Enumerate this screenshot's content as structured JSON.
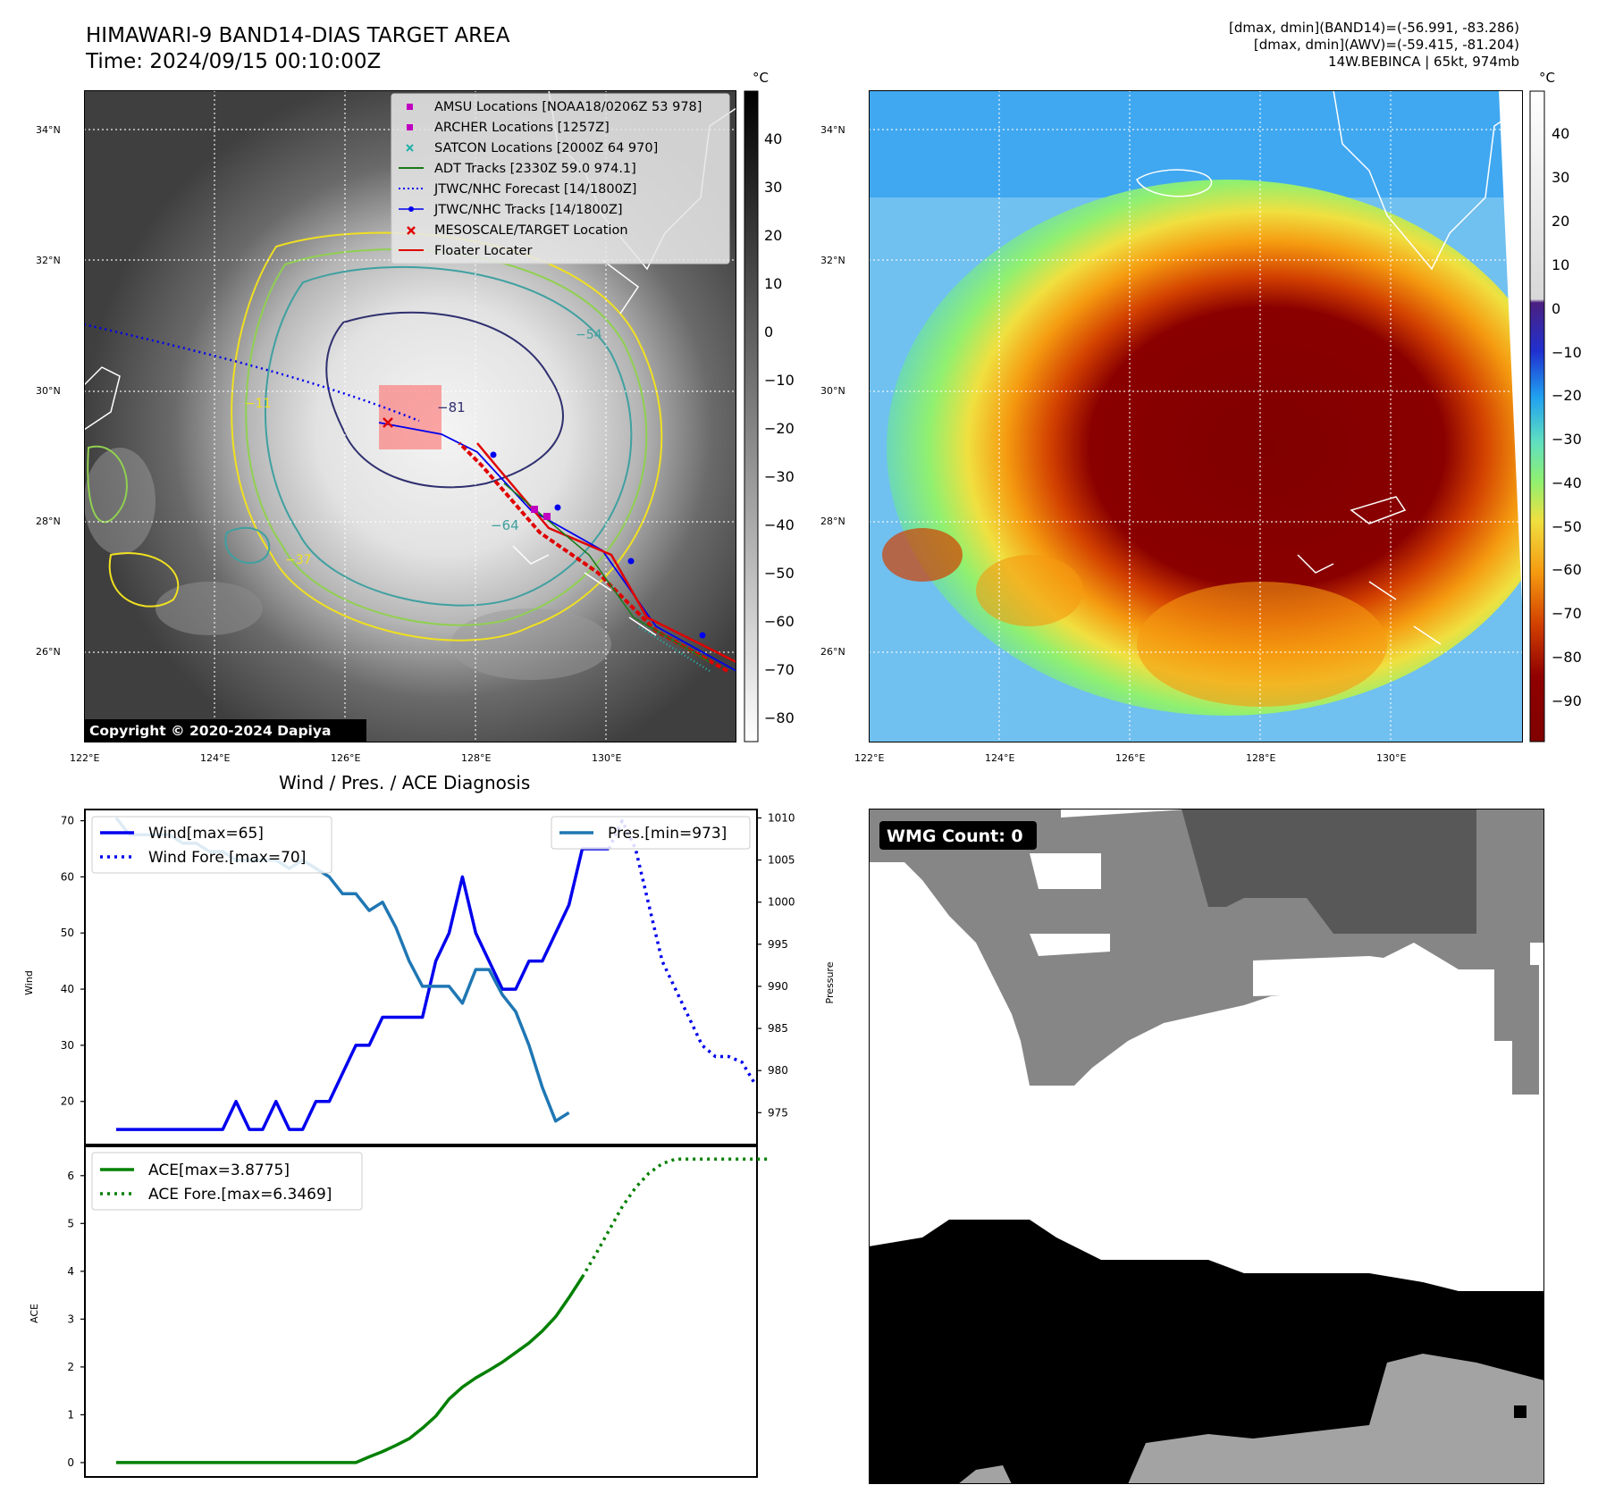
{
  "header": {
    "title_line1": "HIMAWARI-9 BAND14-DIAS TARGET AREA",
    "title_line2": "Time: 2024/09/15 00:10:00Z",
    "info_line1": "[dmax, dmin](BAND14)=(-56.991, -83.286)",
    "info_line2": "[dmax, dmin](AWV)=(-59.415, -81.204)",
    "info_line3": "14W.BEBINCA | 65kt, 974mb"
  },
  "maps": {
    "lat_ticks": [
      "34°N",
      "32°N",
      "30°N",
      "28°N",
      "26°N"
    ],
    "lon_ticks": [
      "122°E",
      "124°E",
      "126°E",
      "128°E",
      "130°E"
    ],
    "copyright": "Copyright © 2020-2024 Dapiya",
    "unit": "°C",
    "gray_cbar_ticks": [
      "40",
      "30",
      "20",
      "10",
      "0",
      "−10",
      "−20",
      "−30",
      "−40",
      "−50",
      "−60",
      "−70",
      "−80"
    ],
    "color_cbar_ticks": [
      "40",
      "30",
      "20",
      "10",
      "0",
      "−10",
      "−20",
      "−30",
      "−40",
      "−50",
      "−60",
      "−70",
      "−80",
      "−90"
    ],
    "contour_labels": [
      "−81",
      "−64",
      "−54",
      "−37",
      "−11"
    ],
    "legend": [
      {
        "label": "AMSU Locations [NOAA18/0206Z 53 978]",
        "color": "#c000c0",
        "marker": "square"
      },
      {
        "label": "ARCHER Locations [1257Z]",
        "color": "#c000c0",
        "marker": "square"
      },
      {
        "label": "SATCON Locations [2000Z 64 970]",
        "color": "#20b2aa",
        "marker": "x"
      },
      {
        "label": "ADT Tracks [2330Z 59.0 974.1]",
        "color": "#1a7a1a",
        "marker": "line"
      },
      {
        "label": "JTWC/NHC Forecast [14/1800Z]",
        "color": "#0000ee",
        "marker": "dotted"
      },
      {
        "label": "JTWC/NHC Tracks [14/1800Z]",
        "color": "#0000ee",
        "marker": "line-dot"
      },
      {
        "label": "MESOSCALE/TARGET Location",
        "color": "#e00000",
        "marker": "x"
      },
      {
        "label": "Floater Locater",
        "color": "#e00000",
        "marker": "line"
      }
    ]
  },
  "wmg": {
    "label": "WMG Count: 0"
  },
  "chart_data": [
    {
      "type": "line",
      "title": "Wind / Pres. / ACE Diagnosis",
      "ylabel": "Wind",
      "ylabel_right": "Pressure",
      "ylim": [
        12,
        72
      ],
      "y2lim": [
        971,
        1011
      ],
      "yticks": [
        20,
        30,
        40,
        50,
        60,
        70
      ],
      "y2ticks": [
        975,
        980,
        985,
        990,
        995,
        1000,
        1005,
        1010
      ],
      "series": [
        {
          "name": "Wind[max=65]",
          "color": "#0000ee",
          "style": "solid",
          "axis": "left",
          "values": [
            15,
            15,
            15,
            15,
            15,
            15,
            15,
            15,
            15,
            20,
            15,
            15,
            20,
            15,
            15,
            20,
            20,
            25,
            30,
            30,
            35,
            35,
            35,
            35,
            45,
            50,
            60,
            50,
            45,
            40,
            40,
            45,
            45,
            50,
            55,
            65,
            65,
            65
          ]
        },
        {
          "name": "Wind Fore.[max=70]",
          "color": "#0000ee",
          "style": "dotted",
          "axis": "left",
          "x_start": 37,
          "values": [
            65,
            70,
            65,
            55,
            45,
            40,
            35,
            30,
            28,
            28,
            27,
            23
          ]
        },
        {
          "name": "Pres.[min=973]",
          "color": "#1f77b4",
          "style": "solid",
          "axis": "right",
          "values": [
            1010,
            1008,
            1008,
            1008,
            1008,
            1007,
            1007,
            1006,
            1006,
            1005,
            1005,
            1005,
            1005,
            1004,
            1005,
            1004,
            1003,
            1001,
            1001,
            999,
            1000,
            997,
            993,
            990,
            990,
            990,
            988,
            992,
            992,
            989,
            987,
            983,
            978,
            974,
            975
          ]
        }
      ]
    },
    {
      "type": "line",
      "ylabel": "ACE",
      "ylim": [
        -0.3,
        6.65
      ],
      "yticks": [
        0,
        1,
        2,
        3,
        4,
        5,
        6
      ],
      "series": [
        {
          "name": "ACE[max=3.8775]",
          "color": "#008000",
          "style": "solid",
          "values": [
            0,
            0,
            0,
            0,
            0,
            0,
            0,
            0,
            0,
            0,
            0,
            0,
            0,
            0,
            0,
            0,
            0,
            0,
            0,
            0.12,
            0.23,
            0.36,
            0.5,
            0.72,
            0.97,
            1.33,
            1.58,
            1.77,
            1.93,
            2.1,
            2.3,
            2.5,
            2.75,
            3.05,
            3.45,
            3.88
          ]
        },
        {
          "name": "ACE Fore.[max=6.3469]",
          "color": "#008000",
          "style": "dotted",
          "x_start": 35,
          "values": [
            3.88,
            4.35,
            4.85,
            5.35,
            5.75,
            6.05,
            6.25,
            6.3469,
            6.3469,
            6.3469,
            6.3469,
            6.3469,
            6.3469,
            6.3469,
            6.3469
          ]
        }
      ]
    }
  ]
}
